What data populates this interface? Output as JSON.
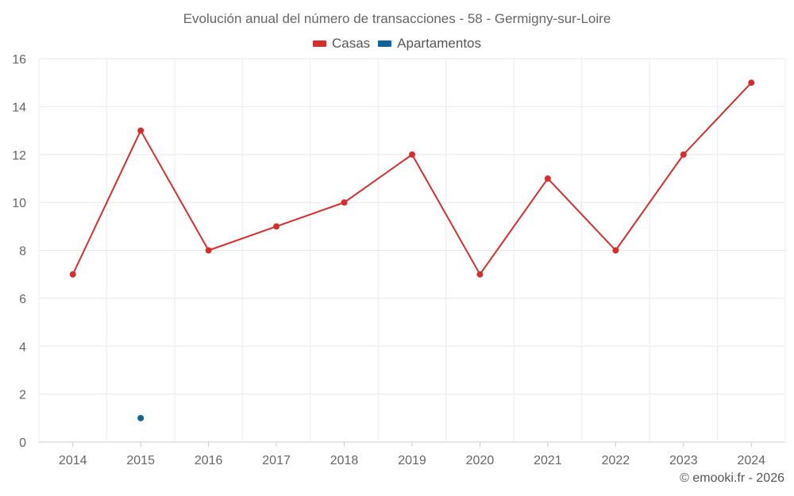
{
  "chart_data": {
    "type": "line",
    "title": "Evolución anual del número de transacciones - 58 - Germigny-sur-Loire",
    "categories": [
      "2014",
      "2015",
      "2016",
      "2017",
      "2018",
      "2019",
      "2020",
      "2021",
      "2022",
      "2023",
      "2024"
    ],
    "series": [
      {
        "name": "Casas",
        "color": "#d32f2f",
        "values": [
          7,
          13,
          8,
          9,
          10,
          12,
          7,
          11,
          8,
          12,
          15
        ]
      },
      {
        "name": "Apartamentos",
        "color": "#0f6396",
        "values": [
          null,
          1,
          null,
          null,
          null,
          null,
          null,
          null,
          null,
          null,
          null
        ]
      }
    ],
    "ylim": [
      0,
      16
    ],
    "yticks": [
      0,
      2,
      4,
      6,
      8,
      10,
      12,
      14,
      16
    ],
    "xlabel": "",
    "ylabel": "",
    "grid": true,
    "legend": "top-center"
  },
  "credit": "© emooki.fr - 2026"
}
